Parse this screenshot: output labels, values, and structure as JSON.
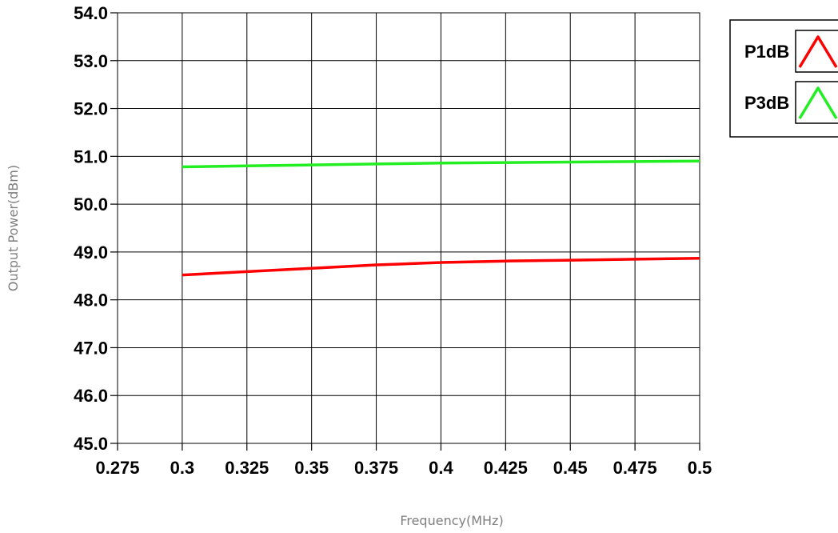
{
  "chart_data": {
    "type": "line",
    "xlabel": "Frequency(MHz)",
    "ylabel": "Output Power(dBm)",
    "xlim": [
      0.275,
      0.5
    ],
    "ylim": [
      45.0,
      54.0
    ],
    "x_ticks": [
      "0.275",
      "0.3",
      "0.325",
      "0.35",
      "0.375",
      "0.4",
      "0.425",
      "0.45",
      "0.475",
      "0.5"
    ],
    "y_ticks": [
      "45.0",
      "46.0",
      "47.0",
      "48.0",
      "49.0",
      "50.0",
      "51.0",
      "52.0",
      "53.0",
      "54.0"
    ],
    "grid": true,
    "legend_position": "top-right-outside",
    "series": [
      {
        "name": "P1dB",
        "color": "#ff0000",
        "x": [
          0.3,
          0.325,
          0.35,
          0.375,
          0.4,
          0.425,
          0.45,
          0.475,
          0.5
        ],
        "y": [
          48.52,
          48.59,
          48.66,
          48.73,
          48.78,
          48.81,
          48.83,
          48.85,
          48.87
        ]
      },
      {
        "name": "P3dB",
        "color": "#22ee22",
        "x": [
          0.3,
          0.325,
          0.35,
          0.375,
          0.4,
          0.425,
          0.45,
          0.475,
          0.5
        ],
        "y": [
          50.78,
          50.8,
          50.82,
          50.84,
          50.86,
          50.87,
          50.88,
          50.89,
          50.9
        ]
      }
    ]
  }
}
